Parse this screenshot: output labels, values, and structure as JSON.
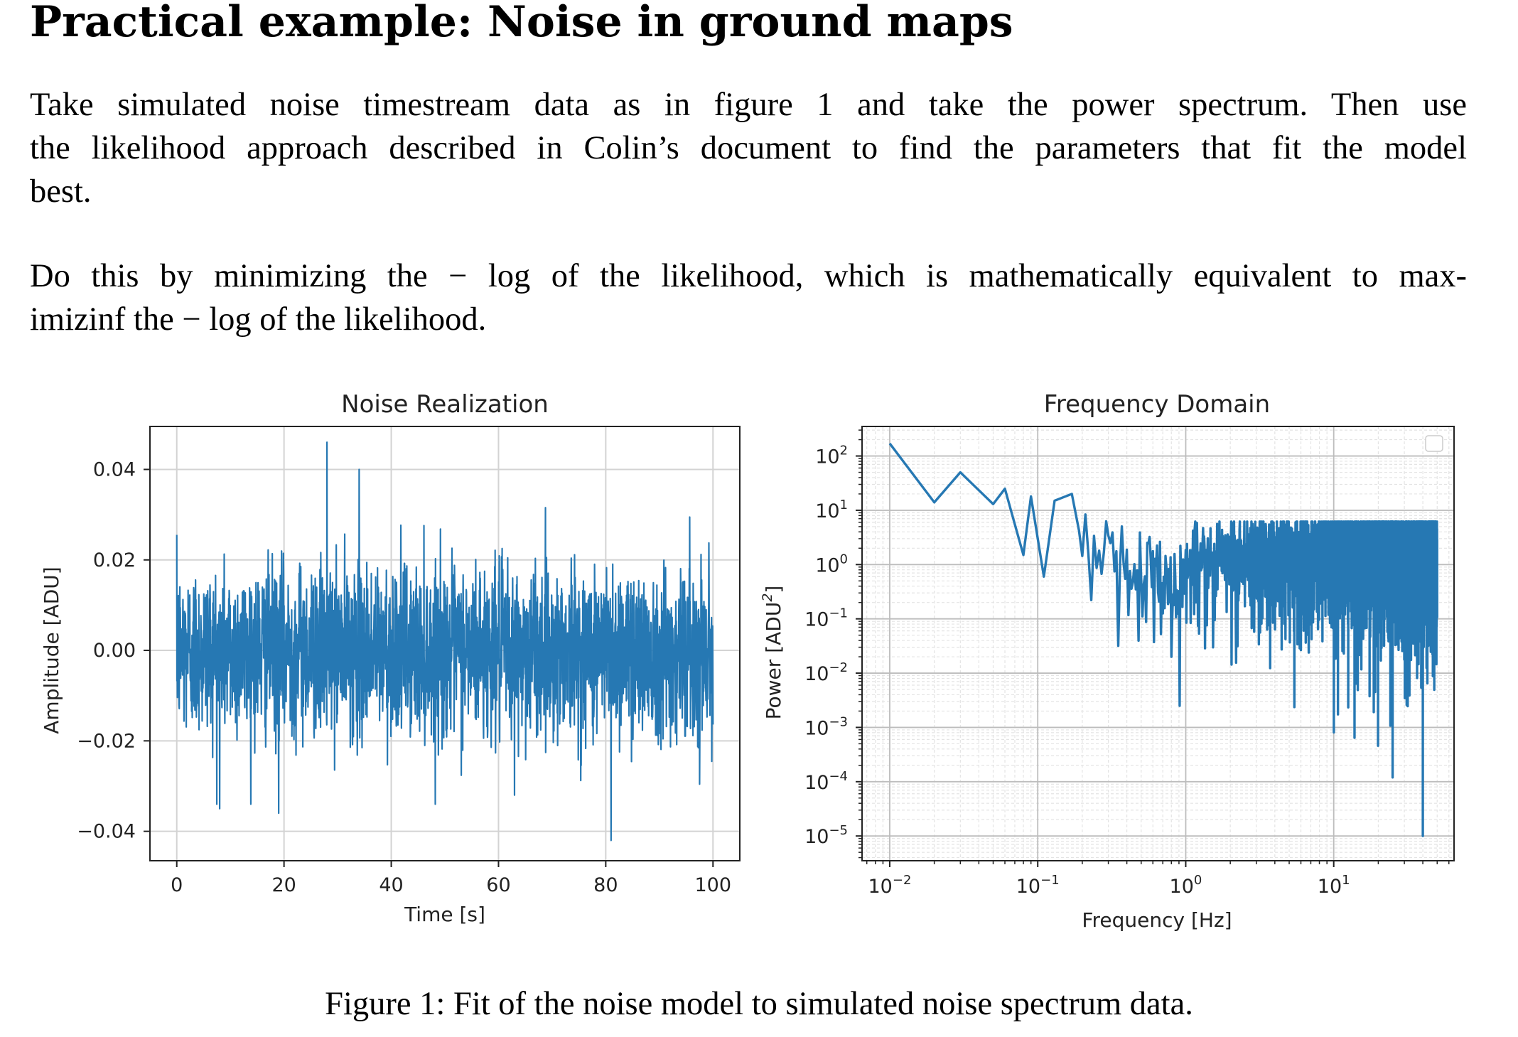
{
  "heading": "Practical example:  Noise in ground maps",
  "paragraph1": {
    "lines": [
      "Take simulated noise timestream data as in figure 1 and take the power spectrum.  Then use",
      "the likelihood approach described in Colin’s document to find the parameters that fit the model",
      "best."
    ]
  },
  "paragraph2": {
    "lines": [
      "Do this by minimizing the − log of the likelihood, which is mathematically equivalent to max-",
      "imizinf the − log of the likelihood."
    ]
  },
  "caption": "Figure 1: Fit of the noise model to simulated noise spectrum data.",
  "colors": {
    "line": "#2678b3",
    "grid": "#d3d3d3",
    "axes": "#222222"
  },
  "chart_data": [
    {
      "type": "line",
      "title": "Noise Realization",
      "xlabel": "Time [s]",
      "ylabel": "Amplitude [ADU]",
      "xlim": [
        -5,
        105
      ],
      "ylim": [
        -0.0465,
        0.0495
      ],
      "xticks": [
        0,
        20,
        40,
        60,
        80,
        100
      ],
      "xtick_labels": [
        "0",
        "20",
        "40",
        "60",
        "80",
        "100"
      ],
      "yticks": [
        0.04,
        0.02,
        0.0,
        -0.02,
        -0.04
      ],
      "ytick_labels": [
        "0.04",
        "0.02",
        "0.00",
        "−0.02",
        "−0.04"
      ],
      "grid": true,
      "series": [
        {
          "x_range": [
            0,
            100
          ],
          "description_of_values": "white noise, std ~0.01 ADU",
          "peaks": [
            {
              "x": 28,
              "y": 0.046
            },
            {
              "x": 34,
              "y": 0.04
            },
            {
              "x": 19,
              "y": -0.036
            },
            {
              "x": 81,
              "y": -0.042
            },
            {
              "x": 8,
              "y": -0.035
            },
            {
              "x": 63,
              "y": -0.032
            }
          ]
        }
      ]
    },
    {
      "type": "line",
      "title": "Frequency Domain",
      "xlabel": "Frequency [Hz]",
      "ylabel": "Power [ADU²]",
      "xscale": "log",
      "yscale": "log",
      "xlim": [
        0.0065,
        65
      ],
      "ylim": [
        3.5e-06,
        350
      ],
      "xticks": [
        0.01,
        0.1,
        1,
        10
      ],
      "xtick_labels": [
        [
          "10",
          "−2"
        ],
        [
          "10",
          "−1"
        ],
        [
          "10",
          "0"
        ],
        [
          "10",
          "1"
        ]
      ],
      "yticks": [
        100,
        10,
        1,
        0.1,
        0.01,
        0.001,
        0.0001,
        1e-05
      ],
      "ytick_labels": [
        [
          "10",
          "2"
        ],
        [
          "10",
          "1"
        ],
        [
          "10",
          "0"
        ],
        [
          "10",
          "−1"
        ],
        [
          "10",
          "−2"
        ],
        [
          "10",
          "−3"
        ],
        [
          "10",
          "−4"
        ],
        [
          "10",
          "−5"
        ]
      ],
      "grid": true,
      "legend": "top-right (empty)",
      "series": [
        {
          "frequency_range": [
            0.01,
            50
          ],
          "low_frequency_points": [
            {
              "x": 0.01,
              "y": 170
            },
            {
              "x": 0.02,
              "y": 14
            },
            {
              "x": 0.03,
              "y": 50
            },
            {
              "x": 0.05,
              "y": 13
            },
            {
              "x": 0.06,
              "y": 25
            },
            {
              "x": 0.08,
              "y": 1.5
            },
            {
              "x": 0.09,
              "y": 18
            },
            {
              "x": 0.11,
              "y": 0.6
            },
            {
              "x": 0.13,
              "y": 15
            },
            {
              "x": 0.17,
              "y": 20
            }
          ],
          "notable_dips": [
            {
              "x": 0.8,
              "y": 0.02
            },
            {
              "x": 0.91,
              "y": 0.0025
            },
            {
              "x": 25,
              "y": 0.00012
            },
            {
              "x": 40,
              "y": 1e-05
            }
          ]
        }
      ]
    }
  ]
}
